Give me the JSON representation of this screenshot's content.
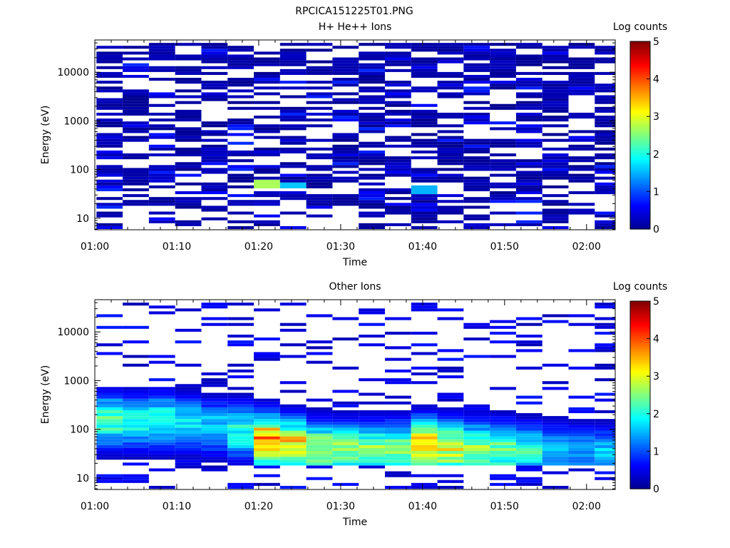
{
  "figure_title": "RPCICA151225T01.PNG",
  "colormap": [
    "#00008f",
    "#0000ff",
    "#007fff",
    "#00ffff",
    "#7fff7f",
    "#ffff00",
    "#ff7f00",
    "#ff0000",
    "#7f0000"
  ],
  "chart_data": [
    {
      "type": "heatmap",
      "title": "H+ He++ Ions",
      "xlabel": "Time",
      "ylabel": "Energy (eV)",
      "x_tick_labels": [
        "01:00",
        "01:10",
        "01:20",
        "01:30",
        "01:40",
        "01:50",
        "02:00"
      ],
      "x_ticks_min": [
        0,
        10,
        20,
        30,
        40,
        50,
        60
      ],
      "xlim_min": [
        0,
        63.5
      ],
      "y_scale": "log",
      "y_tick_labels": [
        "10",
        "100",
        "1000",
        "10000"
      ],
      "y_ticks": [
        10,
        100,
        1000,
        10000
      ],
      "ylim": [
        5.8,
        46000
      ],
      "colorbar": {
        "label": "Log counts",
        "range": [
          0,
          5
        ],
        "tick_labels": [
          "0",
          "1",
          "2",
          "3",
          "4",
          "5"
        ]
      },
      "time_bins_min": [
        0.2,
        3.4,
        6.6,
        9.8,
        13.0,
        16.2,
        19.4,
        22.6,
        25.8,
        29.0,
        32.2,
        35.4,
        38.6,
        41.8,
        45.0,
        48.2,
        51.4,
        54.6,
        57.8,
        61.0
      ],
      "energy_range_eV": [
        6,
        40000
      ],
      "profile_type": "hplus",
      "highlights": [
        {
          "t_min": 19.4,
          "e_low_eV": 42,
          "e_high_eV": 60,
          "log_counts": 2.7
        },
        {
          "t_min": 22.6,
          "e_low_eV": 40,
          "e_high_eV": 55,
          "log_counts": 1.6
        },
        {
          "t_min": 38.6,
          "e_low_eV": 33,
          "e_high_eV": 45,
          "log_counts": 1.5
        }
      ]
    },
    {
      "type": "heatmap",
      "title": "Other Ions",
      "xlabel": "Time",
      "ylabel": "Energy (eV)",
      "x_tick_labels": [
        "01:00",
        "01:10",
        "01:20",
        "01:30",
        "01:40",
        "01:50",
        "02:00"
      ],
      "x_ticks_min": [
        0,
        10,
        20,
        30,
        40,
        50,
        60
      ],
      "xlim_min": [
        0,
        63.5
      ],
      "y_scale": "log",
      "y_tick_labels": [
        "10",
        "100",
        "1000",
        "10000"
      ],
      "y_ticks": [
        10,
        100,
        1000,
        10000
      ],
      "ylim": [
        5.8,
        46000
      ],
      "colorbar": {
        "label": "Log counts",
        "range": [
          0,
          5
        ],
        "tick_labels": [
          "0",
          "1",
          "2",
          "3",
          "4",
          "5"
        ]
      },
      "time_bins_min": [
        0.2,
        3.4,
        6.6,
        9.8,
        13.0,
        16.2,
        19.4,
        22.6,
        25.8,
        29.0,
        32.2,
        35.4,
        38.6,
        41.8,
        45.0,
        48.2,
        51.4,
        54.6,
        57.8,
        61.0
      ],
      "energy_range_eV": [
        6,
        40000
      ],
      "profile_type": "heavy",
      "column_peak_log_counts": [
        2.4,
        2.1,
        2.2,
        1.9,
        1.8,
        2.2,
        4.2,
        3.6,
        2.9,
        2.7,
        2.7,
        2.6,
        3.8,
        3.2,
        2.9,
        2.7,
        2.2,
        1.7,
        1.6,
        1.8
      ],
      "column_peak_energy_eV": [
        150,
        140,
        150,
        130,
        110,
        90,
        55,
        45,
        40,
        38,
        38,
        38,
        45,
        40,
        38,
        38,
        35,
        35,
        32,
        30
      ]
    }
  ]
}
